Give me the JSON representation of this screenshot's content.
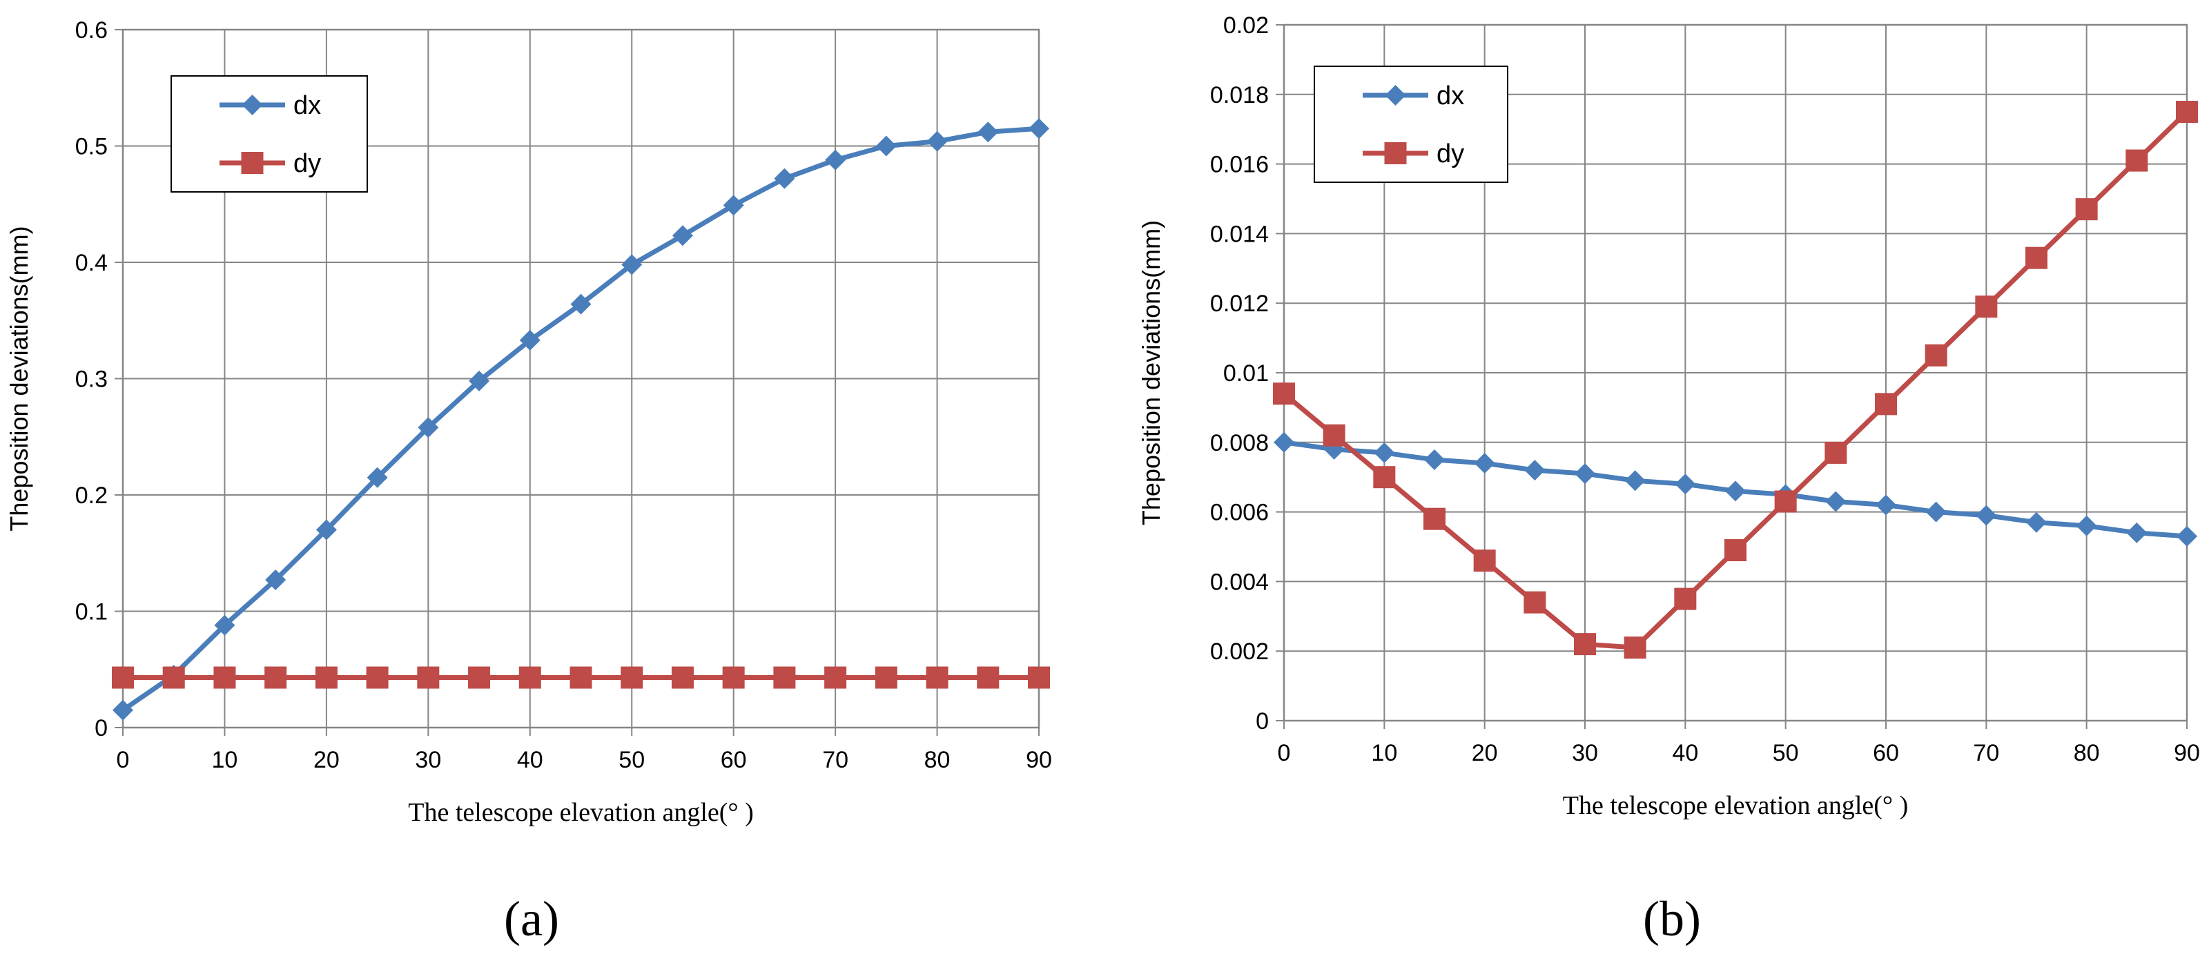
{
  "chart_data": [
    {
      "type": "line",
      "panel_label": "(a)",
      "xlabel": "The telescope elevation angle(° )",
      "ylabel": "Theposition deviations(mm)",
      "xlim": [
        0,
        90
      ],
      "ylim": [
        0,
        0.6
      ],
      "xticks": [
        "0",
        "10",
        "20",
        "30",
        "40",
        "50",
        "60",
        "70",
        "80",
        "90"
      ],
      "yticks": [
        "0",
        "0.1",
        "0.2",
        "0.3",
        "0.4",
        "0.5",
        "0.6"
      ],
      "grid": true,
      "legend_position": "top-left",
      "x": [
        0,
        5,
        10,
        15,
        20,
        25,
        30,
        35,
        40,
        45,
        50,
        55,
        60,
        65,
        70,
        75,
        80,
        85,
        90
      ],
      "series": [
        {
          "name": "dx",
          "color": "#4a7ebb",
          "marker": "diamond",
          "values": [
            0.015,
            0.045,
            0.088,
            0.127,
            0.17,
            0.215,
            0.258,
            0.298,
            0.333,
            0.364,
            0.398,
            0.423,
            0.449,
            0.472,
            0.488,
            0.5,
            0.504,
            0.512,
            0.515
          ]
        },
        {
          "name": "dy",
          "color": "#be4b48",
          "marker": "square",
          "values": [
            0.043,
            0.043,
            0.043,
            0.043,
            0.043,
            0.043,
            0.043,
            0.043,
            0.043,
            0.043,
            0.043,
            0.043,
            0.043,
            0.043,
            0.043,
            0.043,
            0.043,
            0.043,
            0.043
          ]
        }
      ]
    },
    {
      "type": "line",
      "panel_label": "(b)",
      "xlabel": "The telescope elevation angle(° )",
      "ylabel": "Theposition deviations(mm)",
      "xlim": [
        0,
        90
      ],
      "ylim": [
        0,
        0.02
      ],
      "xticks": [
        "0",
        "10",
        "20",
        "30",
        "40",
        "50",
        "60",
        "70",
        "80",
        "90"
      ],
      "yticks": [
        "0",
        "0.002",
        "0.004",
        "0.006",
        "0.008",
        "0.01",
        "0.012",
        "0.014",
        "0.016",
        "0.018",
        "0.02"
      ],
      "grid": true,
      "legend_position": "top-left",
      "x": [
        0,
        5,
        10,
        15,
        20,
        25,
        30,
        35,
        40,
        45,
        50,
        55,
        60,
        65,
        70,
        75,
        80,
        85,
        90
      ],
      "series": [
        {
          "name": "dx",
          "color": "#4a7ebb",
          "marker": "diamond",
          "values": [
            0.008,
            0.0078,
            0.0077,
            0.0075,
            0.0074,
            0.0072,
            0.0071,
            0.0069,
            0.0068,
            0.0066,
            0.0065,
            0.0063,
            0.0062,
            0.006,
            0.0059,
            0.0057,
            0.0056,
            0.0054,
            0.0053
          ]
        },
        {
          "name": "dy",
          "color": "#be4b48",
          "marker": "square",
          "values": [
            0.0094,
            0.0082,
            0.007,
            0.0058,
            0.0046,
            0.0034,
            0.0022,
            0.0021,
            0.0035,
            0.0049,
            0.0063,
            0.0077,
            0.0091,
            0.0105,
            0.0119,
            0.0133,
            0.0147,
            0.0161,
            0.0175
          ]
        }
      ]
    }
  ]
}
